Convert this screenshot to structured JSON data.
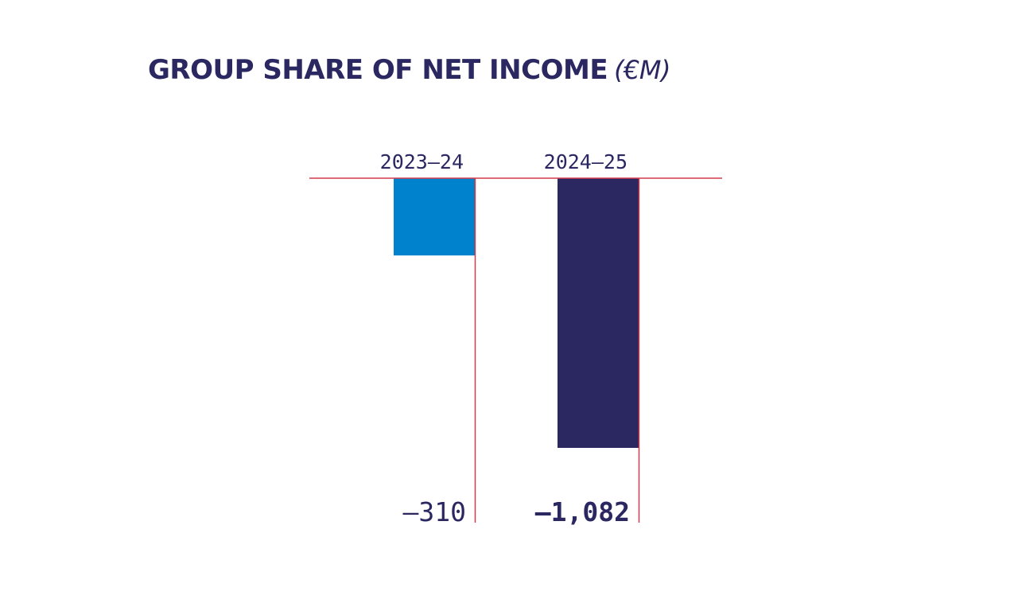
{
  "chart_data": {
    "type": "bar",
    "title": "GROUP SHARE OF NET INCOME",
    "unit": "(€M)",
    "categories": [
      "2023–24",
      "2024–25"
    ],
    "values": [
      -310,
      -1082
    ],
    "value_labels": [
      "–310",
      "–1,082"
    ],
    "colors": [
      "#0082cc",
      "#2a2761"
    ],
    "label_colors": [
      "#2a2761",
      "#2a2761"
    ],
    "highlight": [
      false,
      true
    ],
    "axis_color": "#d23c4c",
    "ylim": [
      -1082,
      0
    ],
    "grid": false,
    "legend": "none"
  }
}
